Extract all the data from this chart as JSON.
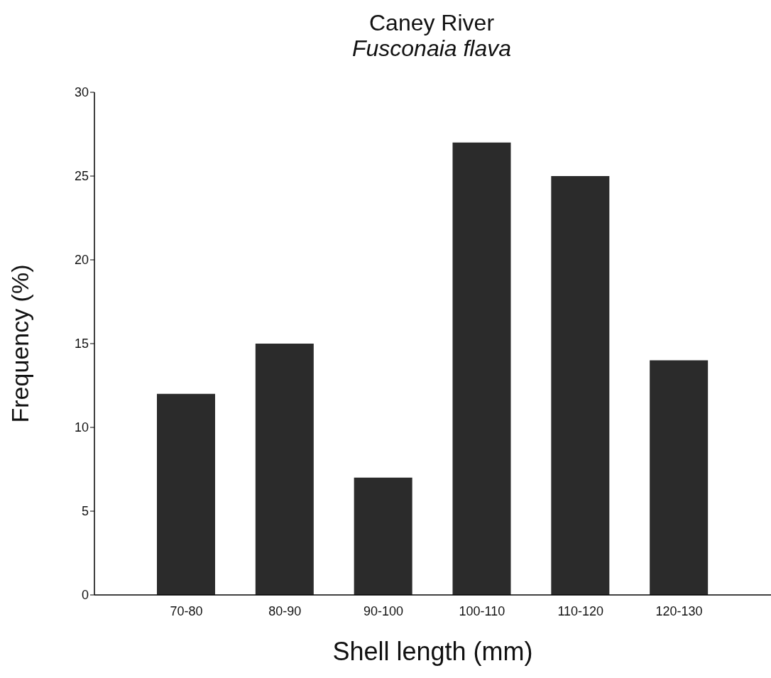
{
  "chart_data": {
    "type": "bar",
    "title": "Caney River",
    "subtitle": "Fusconaia flava",
    "xlabel": "Shell length (mm)",
    "ylabel": "Frequency (%)",
    "categories": [
      "70-80",
      "80-90",
      "90-100",
      "100-110",
      "110-120",
      "120-130"
    ],
    "values": [
      12,
      15,
      7,
      27,
      25,
      14
    ],
    "color": "#2b2b2b",
    "ylim": [
      0,
      30
    ],
    "yticks": [
      0,
      5,
      10,
      15,
      20,
      25,
      30
    ],
    "grid": false
  }
}
